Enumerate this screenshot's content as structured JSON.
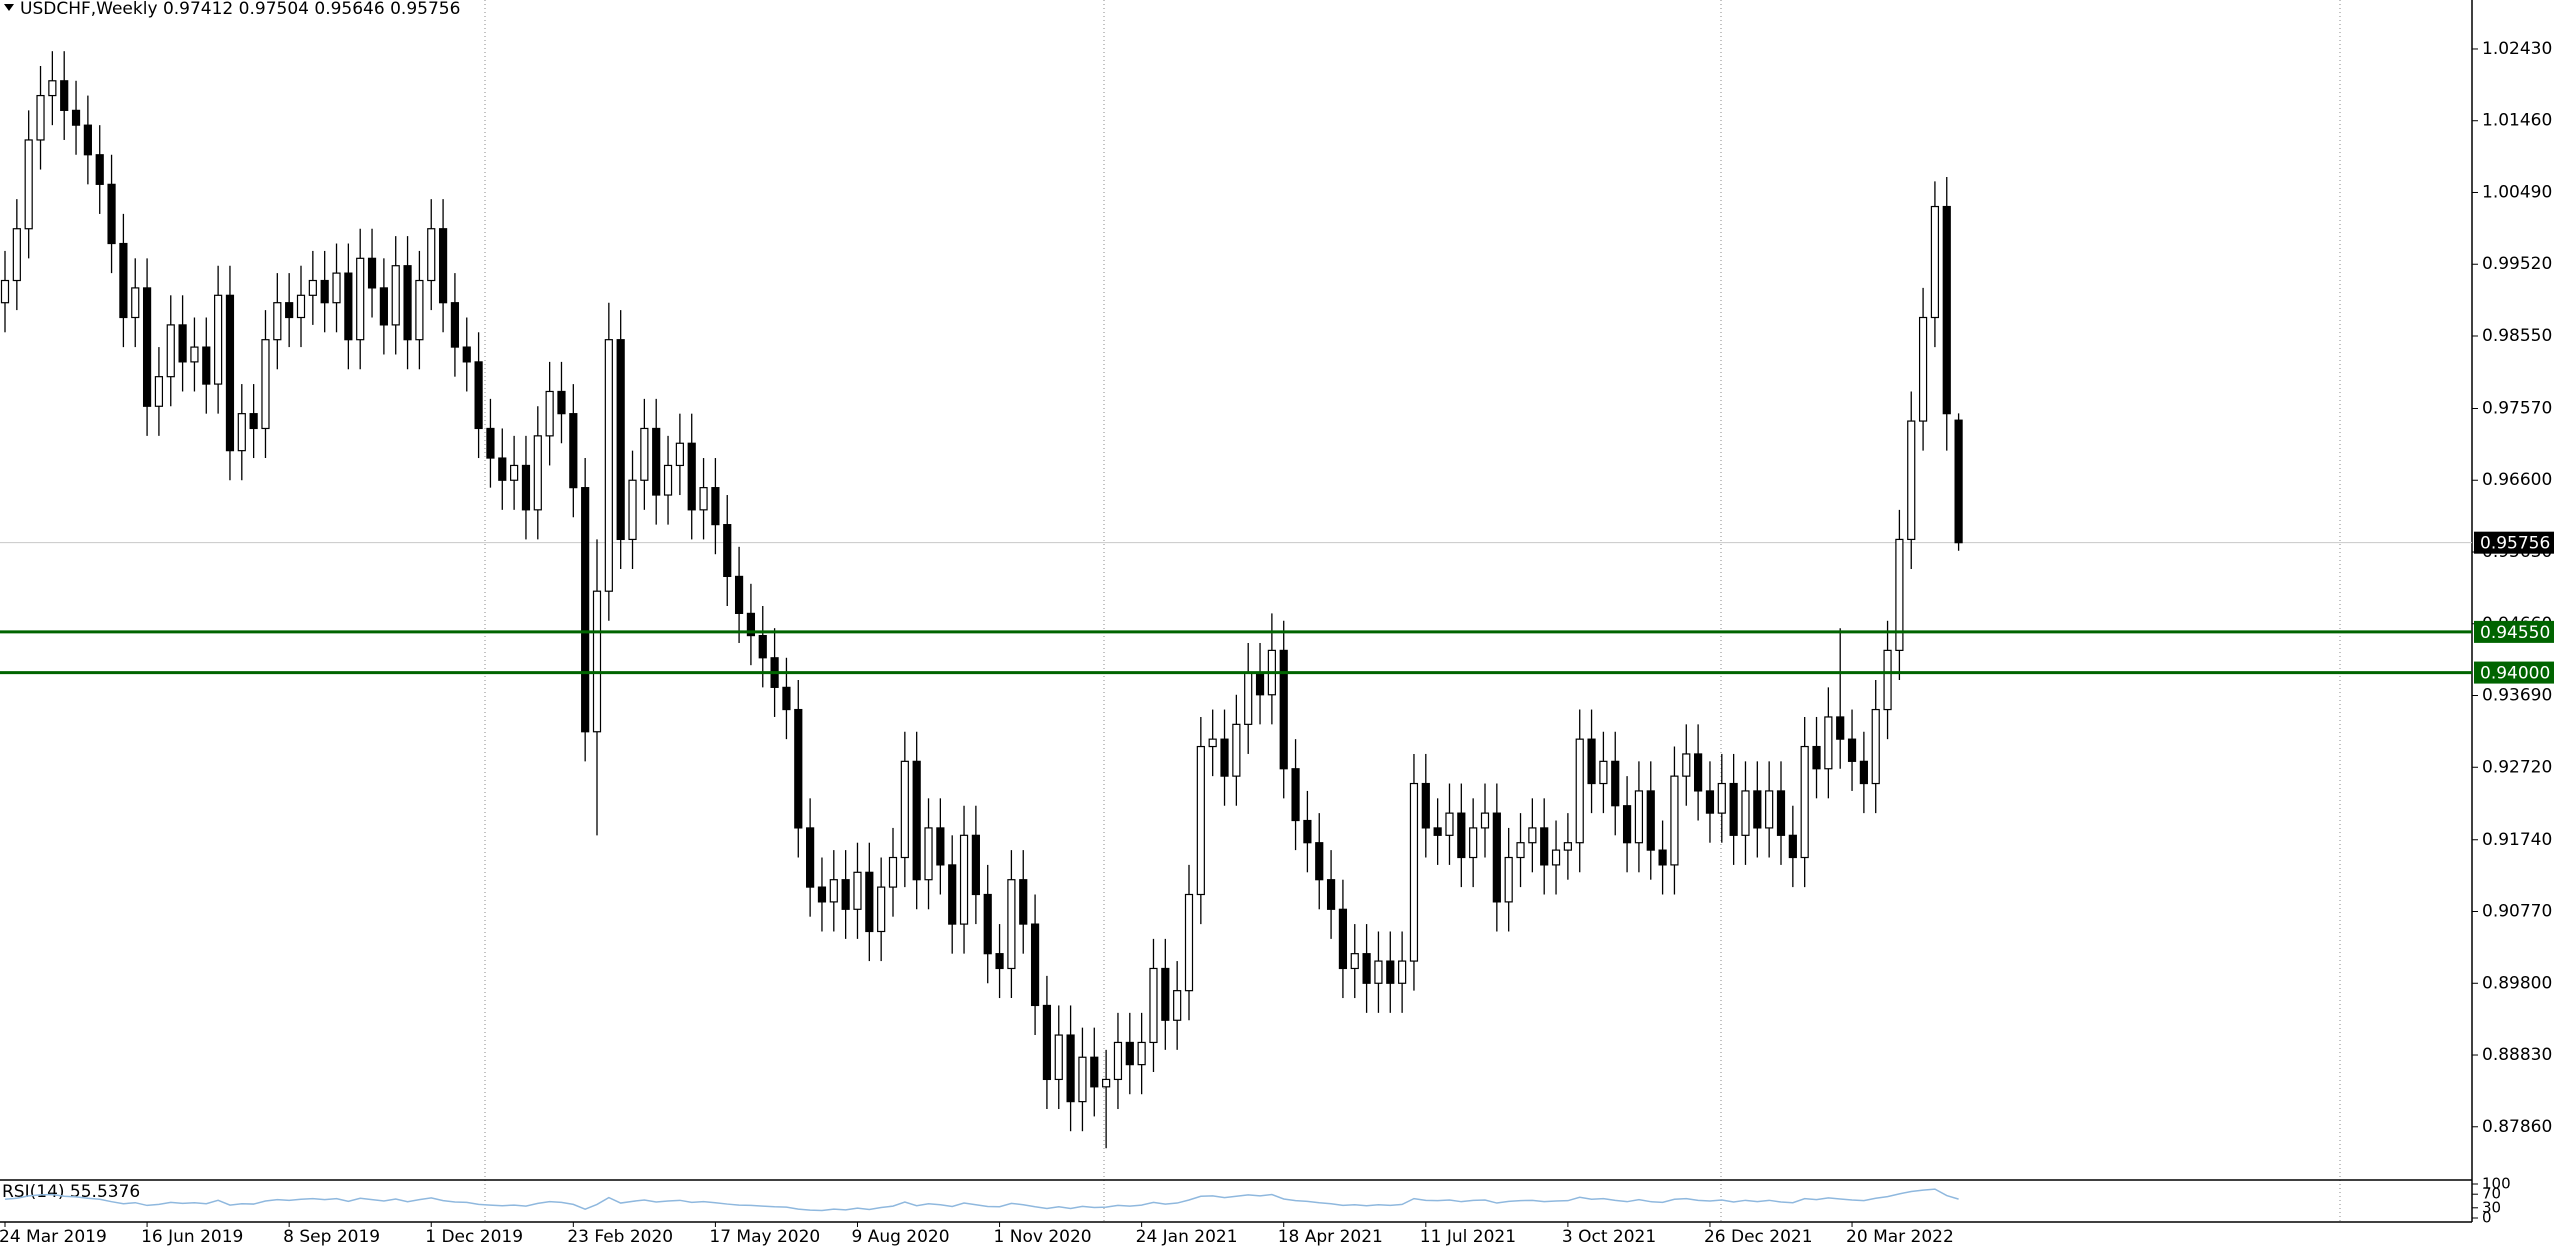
{
  "chart_data": [
    {
      "type": "candlestick",
      "title": "USDCHF,Weekly",
      "categories": [
        "24 Mar 2019",
        null,
        null,
        null,
        null,
        null,
        null,
        null,
        null,
        null,
        null,
        null,
        "16 Jun 2019",
        null,
        null,
        null,
        null,
        null,
        null,
        null,
        null,
        null,
        null,
        null,
        "8 Sep 2019",
        null,
        null,
        null,
        null,
        null,
        null,
        null,
        null,
        null,
        null,
        null,
        "1 Dec 2019",
        null,
        null,
        null,
        null,
        null,
        null,
        null,
        null,
        null,
        null,
        null,
        "23 Feb 2020",
        null,
        null,
        null,
        null,
        null,
        null,
        null,
        null,
        null,
        null,
        null,
        "17 May 2020",
        null,
        null,
        null,
        null,
        null,
        null,
        null,
        null,
        null,
        null,
        null,
        "9 Aug 2020",
        null,
        null,
        null,
        null,
        null,
        null,
        null,
        null,
        null,
        null,
        null,
        "1 Nov 2020",
        null,
        null,
        null,
        null,
        null,
        null,
        null,
        null,
        null,
        null,
        null,
        "24 Jan 2021",
        null,
        null,
        null,
        null,
        null,
        null,
        null,
        null,
        null,
        null,
        null,
        "18 Apr 2021",
        null,
        null,
        null,
        null,
        null,
        null,
        null,
        null,
        null,
        null,
        null,
        "11 Jul 2021",
        null,
        null,
        null,
        null,
        null,
        null,
        null,
        null,
        null,
        null,
        null,
        "3 Oct 2021",
        null,
        null,
        null,
        null,
        null,
        null,
        null,
        null,
        null,
        null,
        null,
        "26 Dec 2021",
        null,
        null,
        null,
        null,
        null,
        null,
        null,
        null,
        null,
        null,
        null,
        "20 Mar 2022",
        null,
        null,
        null,
        null,
        null,
        null,
        null,
        null,
        null
      ],
      "open": [
        0.99,
        0.993,
        1.0,
        1.012,
        1.018,
        1.02,
        1.016,
        1.014,
        1.01,
        1.006,
        0.998,
        0.988,
        0.992,
        0.976,
        0.98,
        0.987,
        0.982,
        0.984,
        0.979,
        0.991,
        0.97,
        0.975,
        0.973,
        0.985,
        0.99,
        0.988,
        0.991,
        0.993,
        0.99,
        0.994,
        0.985,
        0.996,
        0.992,
        0.987,
        0.995,
        0.985,
        0.993,
        1.0,
        0.99,
        0.984,
        0.982,
        0.973,
        0.969,
        0.966,
        0.968,
        0.962,
        0.972,
        0.978,
        0.975,
        0.965,
        0.932,
        0.951,
        0.985,
        0.958,
        0.966,
        0.973,
        0.964,
        0.968,
        0.971,
        0.962,
        0.965,
        0.96,
        0.953,
        0.948,
        0.945,
        0.942,
        0.938,
        0.935,
        0.919,
        0.911,
        0.909,
        0.912,
        0.908,
        0.913,
        0.905,
        0.911,
        0.915,
        0.928,
        0.912,
        0.919,
        0.914,
        0.906,
        0.918,
        0.91,
        0.902,
        0.9,
        0.912,
        0.906,
        0.895,
        0.885,
        0.891,
        0.882,
        0.888,
        0.884,
        0.885,
        0.89,
        0.887,
        0.89,
        0.9,
        0.893,
        0.897,
        0.91,
        0.93,
        0.931,
        0.926,
        0.933,
        0.94,
        0.937,
        0.943,
        0.927,
        0.92,
        0.917,
        0.912,
        0.908,
        0.9,
        0.902,
        0.898,
        0.901,
        0.898,
        0.901,
        0.925,
        0.919,
        0.918,
        0.921,
        0.915,
        0.919,
        0.921,
        0.909,
        0.915,
        0.917,
        0.919,
        0.914,
        0.916,
        0.917,
        0.931,
        0.925,
        0.928,
        0.922,
        0.917,
        0.924,
        0.916,
        0.914,
        0.926,
        0.929,
        0.924,
        0.921,
        0.925,
        0.918,
        0.924,
        0.919,
        0.924,
        0.918,
        0.915,
        0.93,
        0.927,
        0.934,
        0.931,
        0.928,
        0.925,
        0.935,
        0.943,
        0.958,
        0.974,
        0.988,
        1.003,
        0.97412
      ],
      "high": [
        0.997,
        1.004,
        1.016,
        1.022,
        1.024,
        1.024,
        1.02,
        1.018,
        1.014,
        1.01,
        1.002,
        0.996,
        0.996,
        0.984,
        0.991,
        0.991,
        0.988,
        0.988,
        0.995,
        0.995,
        0.979,
        0.979,
        0.989,
        0.994,
        0.994,
        0.995,
        0.997,
        0.997,
        0.998,
        0.998,
        1.0,
        1.0,
        0.996,
        0.999,
        0.999,
        0.997,
        1.004,
        1.004,
        0.994,
        0.988,
        0.986,
        0.977,
        0.973,
        0.972,
        0.972,
        0.976,
        0.982,
        0.982,
        0.979,
        0.969,
        0.958,
        0.99,
        0.989,
        0.97,
        0.977,
        0.977,
        0.972,
        0.975,
        0.975,
        0.969,
        0.969,
        0.964,
        0.957,
        0.952,
        0.949,
        0.946,
        0.942,
        0.939,
        0.923,
        0.915,
        0.916,
        0.916,
        0.917,
        0.917,
        0.915,
        0.919,
        0.932,
        0.932,
        0.923,
        0.923,
        0.918,
        0.922,
        0.922,
        0.914,
        0.906,
        0.916,
        0.916,
        0.91,
        0.899,
        0.895,
        0.895,
        0.892,
        0.892,
        0.889,
        0.894,
        0.894,
        0.894,
        0.904,
        0.904,
        0.901,
        0.914,
        0.934,
        0.935,
        0.935,
        0.937,
        0.944,
        0.944,
        0.948,
        0.947,
        0.931,
        0.924,
        0.921,
        0.916,
        0.912,
        0.906,
        0.906,
        0.905,
        0.905,
        0.905,
        0.929,
        0.929,
        0.923,
        0.925,
        0.925,
        0.923,
        0.925,
        0.925,
        0.919,
        0.921,
        0.923,
        0.923,
        0.92,
        0.921,
        0.935,
        0.935,
        0.932,
        0.932,
        0.926,
        0.928,
        0.928,
        0.92,
        0.93,
        0.933,
        0.933,
        0.928,
        0.929,
        0.929,
        0.928,
        0.928,
        0.928,
        0.928,
        0.922,
        0.934,
        0.934,
        0.938,
        0.946,
        0.935,
        0.932,
        0.939,
        0.947,
        0.962,
        0.978,
        0.992,
        1.0064,
        1.007,
        0.97504
      ],
      "low": [
        0.986,
        0.989,
        0.996,
        1.008,
        1.014,
        1.012,
        1.01,
        1.006,
        1.002,
        0.994,
        0.984,
        0.984,
        0.972,
        0.972,
        0.976,
        0.978,
        0.978,
        0.975,
        0.975,
        0.966,
        0.966,
        0.969,
        0.969,
        0.981,
        0.984,
        0.984,
        0.987,
        0.986,
        0.986,
        0.981,
        0.981,
        0.988,
        0.983,
        0.983,
        0.981,
        0.981,
        0.989,
        0.986,
        0.98,
        0.978,
        0.969,
        0.965,
        0.962,
        0.962,
        0.958,
        0.958,
        0.968,
        0.971,
        0.961,
        0.928,
        0.918,
        0.947,
        0.954,
        0.954,
        0.962,
        0.96,
        0.96,
        0.964,
        0.958,
        0.958,
        0.956,
        0.949,
        0.944,
        0.941,
        0.938,
        0.934,
        0.931,
        0.915,
        0.907,
        0.905,
        0.905,
        0.904,
        0.904,
        0.901,
        0.901,
        0.907,
        0.911,
        0.908,
        0.908,
        0.91,
        0.902,
        0.902,
        0.906,
        0.898,
        0.896,
        0.896,
        0.902,
        0.891,
        0.881,
        0.881,
        0.878,
        0.878,
        0.88,
        0.8757,
        0.881,
        0.883,
        0.883,
        0.886,
        0.889,
        0.889,
        0.893,
        0.906,
        0.926,
        0.922,
        0.922,
        0.929,
        0.933,
        0.933,
        0.923,
        0.916,
        0.913,
        0.908,
        0.904,
        0.896,
        0.896,
        0.894,
        0.894,
        0.894,
        0.894,
        0.897,
        0.915,
        0.914,
        0.914,
        0.911,
        0.911,
        0.915,
        0.905,
        0.905,
        0.911,
        0.913,
        0.91,
        0.91,
        0.912,
        0.913,
        0.921,
        0.921,
        0.918,
        0.913,
        0.913,
        0.912,
        0.91,
        0.91,
        0.922,
        0.92,
        0.917,
        0.917,
        0.914,
        0.914,
        0.915,
        0.915,
        0.914,
        0.911,
        0.911,
        0.923,
        0.923,
        0.927,
        0.924,
        0.921,
        0.921,
        0.931,
        0.939,
        0.954,
        0.97,
        0.984,
        0.97,
        0.95646
      ],
      "close": [
        0.993,
        1.0,
        1.012,
        1.018,
        1.02,
        1.016,
        1.014,
        1.01,
        1.006,
        0.998,
        0.988,
        0.992,
        0.976,
        0.98,
        0.987,
        0.982,
        0.984,
        0.979,
        0.991,
        0.97,
        0.975,
        0.973,
        0.985,
        0.99,
        0.988,
        0.991,
        0.993,
        0.99,
        0.994,
        0.985,
        0.996,
        0.992,
        0.987,
        0.995,
        0.985,
        0.993,
        1.0,
        0.99,
        0.984,
        0.982,
        0.973,
        0.969,
        0.966,
        0.968,
        0.962,
        0.972,
        0.978,
        0.975,
        0.965,
        0.932,
        0.951,
        0.985,
        0.958,
        0.966,
        0.973,
        0.964,
        0.968,
        0.971,
        0.962,
        0.965,
        0.96,
        0.953,
        0.948,
        0.945,
        0.942,
        0.938,
        0.935,
        0.919,
        0.911,
        0.909,
        0.912,
        0.908,
        0.913,
        0.905,
        0.911,
        0.915,
        0.928,
        0.912,
        0.919,
        0.914,
        0.906,
        0.918,
        0.91,
        0.902,
        0.9,
        0.912,
        0.906,
        0.895,
        0.885,
        0.891,
        0.882,
        0.888,
        0.884,
        0.885,
        0.89,
        0.887,
        0.89,
        0.9,
        0.893,
        0.897,
        0.91,
        0.93,
        0.931,
        0.926,
        0.933,
        0.94,
        0.937,
        0.943,
        0.927,
        0.92,
        0.917,
        0.912,
        0.908,
        0.9,
        0.902,
        0.898,
        0.901,
        0.898,
        0.901,
        0.925,
        0.919,
        0.918,
        0.921,
        0.915,
        0.919,
        0.921,
        0.909,
        0.915,
        0.917,
        0.919,
        0.914,
        0.916,
        0.917,
        0.931,
        0.925,
        0.928,
        0.922,
        0.917,
        0.924,
        0.916,
        0.914,
        0.926,
        0.929,
        0.924,
        0.921,
        0.925,
        0.918,
        0.924,
        0.919,
        0.924,
        0.918,
        0.915,
        0.93,
        0.927,
        0.934,
        0.931,
        0.928,
        0.925,
        0.935,
        0.943,
        0.958,
        0.974,
        0.988,
        1.003,
        0.975,
        0.95756
      ],
      "up_color": "#ffffff",
      "down_color": "#000000",
      "outline_color": "#000000",
      "ylim": [
        0.87154,
        1.03092
      ],
      "yticks": [
        {
          "value": 1.0243,
          "label": "1.02430"
        },
        {
          "value": 1.0146,
          "label": "1.01460"
        },
        {
          "value": 1.0049,
          "label": "1.00490"
        },
        {
          "value": 0.9952,
          "label": "0.99520"
        },
        {
          "value": 0.9855,
          "label": "0.98550"
        },
        {
          "value": 0.9757,
          "label": "0.97570"
        },
        {
          "value": 0.966,
          "label": "0.96600"
        },
        {
          "value": 0.9563,
          "label": "0.95630"
        },
        {
          "value": 0.9466,
          "label": "0.94660"
        },
        {
          "value": 0.9369,
          "label": "0.93690"
        },
        {
          "value": 0.9272,
          "label": "0.92720"
        },
        {
          "value": 0.9174,
          "label": "0.91740"
        },
        {
          "value": 0.9077,
          "label": "0.90770"
        },
        {
          "value": 0.898,
          "label": "0.89800"
        },
        {
          "value": 0.8883,
          "label": "0.88830"
        },
        {
          "value": 0.8786,
          "label": "0.87860"
        }
      ],
      "hlines": [
        {
          "value": 0.9455,
          "label": "0.94550",
          "color": "#006400"
        },
        {
          "value": 0.94,
          "label": "0.94000",
          "color": "#006400"
        }
      ],
      "last_price": {
        "value": 0.95756,
        "label": "0.95756"
      }
    },
    {
      "type": "line",
      "title": "RSI(14)",
      "color": "#8fb8de",
      "values": [
        55,
        58,
        65,
        68,
        69,
        64,
        62,
        58,
        55,
        48,
        42,
        45,
        37,
        40,
        46,
        43,
        45,
        42,
        52,
        38,
        42,
        41,
        50,
        54,
        52,
        55,
        57,
        54,
        57,
        49,
        58,
        54,
        50,
        56,
        48,
        54,
        59,
        51,
        47,
        46,
        40,
        38,
        36,
        38,
        35,
        43,
        48,
        46,
        40,
        26,
        40,
        60,
        44,
        49,
        53,
        47,
        50,
        52,
        46,
        48,
        45,
        41,
        38,
        37,
        35,
        33,
        32,
        26,
        23,
        22,
        26,
        24,
        29,
        25,
        31,
        35,
        47,
        36,
        42,
        39,
        34,
        44,
        39,
        34,
        33,
        43,
        39,
        33,
        28,
        33,
        28,
        34,
        31,
        32,
        37,
        35,
        38,
        46,
        41,
        44,
        53,
        64,
        65,
        60,
        64,
        68,
        65,
        69,
        56,
        51,
        49,
        45,
        42,
        37,
        39,
        36,
        39,
        37,
        40,
        57,
        52,
        51,
        53,
        48,
        52,
        53,
        44,
        49,
        51,
        52,
        48,
        50,
        51,
        61,
        55,
        57,
        52,
        48,
        54,
        48,
        46,
        55,
        57,
        52,
        50,
        53,
        47,
        52,
        48,
        52,
        47,
        45,
        57,
        54,
        59,
        56,
        53,
        51,
        58,
        63,
        71,
        78,
        82,
        85,
        66,
        55.5376
      ],
      "ylim": [
        0,
        100
      ],
      "yticks": [
        0,
        30,
        70,
        100
      ]
    }
  ]
}
